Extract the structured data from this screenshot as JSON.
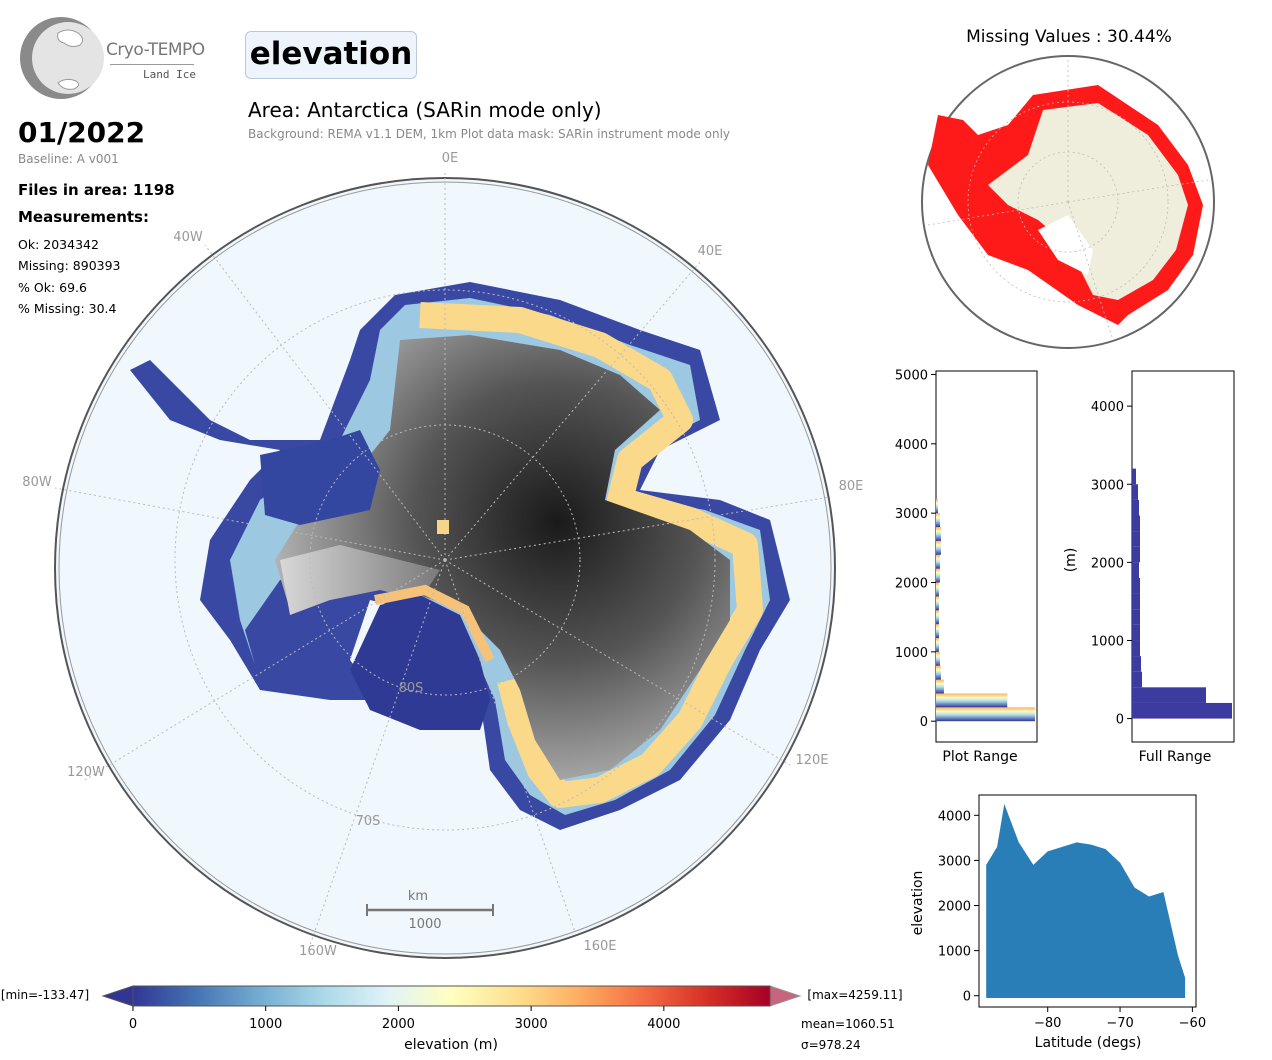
{
  "header": {
    "logo_title": "Cryo-TEMPO",
    "logo_subtitle": "Land Ice",
    "variable": "elevation",
    "area_title": "Area: Antarctica (SARin mode only)",
    "background_note": "Background: REMA v1.1 DEM, 1km   Plot data mask: SARin instrument mode only"
  },
  "stats": {
    "date": "01/2022",
    "baseline": "Baseline: A v001",
    "files": "Files in area: 1198",
    "measurements_label": "Measurements:",
    "ok": "Ok: 2034342",
    "missing": "Missing: 890393",
    "pct_ok": "% Ok: 69.6",
    "pct_missing": "% Missing: 30.4"
  },
  "map": {
    "lon_labels": [
      "0E",
      "40E",
      "80E",
      "120E",
      "160E",
      "40W",
      "80W",
      "120W",
      "160W"
    ],
    "lat_labels": [
      "80S",
      "70S"
    ],
    "scale_unit": "km",
    "scale_value": "1000"
  },
  "missing_map": {
    "title": "Missing Values : 30.44%"
  },
  "colorbar": {
    "label": "elevation (m)",
    "min_label": "[min=-133.47]",
    "max_label": "[max=4259.11]",
    "ticks": [
      "0",
      "1000",
      "2000",
      "3000",
      "4000"
    ],
    "mean": "mean=1060.51",
    "sigma": "σ=978.24",
    "colors": [
      "#313695",
      "#4575b4",
      "#74add1",
      "#abd9e9",
      "#e0f3f8",
      "#ffffbf",
      "#fee090",
      "#fdae61",
      "#f46d43",
      "#d73027",
      "#a50026"
    ]
  },
  "chart_data": [
    {
      "type": "bar",
      "orientation": "horizontal",
      "title": "",
      "xlabel": "Plot Range",
      "ylabel": "",
      "ylim": [
        -300,
        5050
      ],
      "yticks": [
        "0",
        "1000",
        "2000",
        "3000",
        "4000",
        "5000"
      ],
      "bins": [
        {
          "y": 0,
          "count": 1.0
        },
        {
          "y": 200,
          "count": 0.72
        },
        {
          "y": 400,
          "count": 0.08
        },
        {
          "y": 600,
          "count": 0.05
        },
        {
          "y": 800,
          "count": 0.04
        },
        {
          "y": 1000,
          "count": 0.03
        },
        {
          "y": 1200,
          "count": 0.03
        },
        {
          "y": 1400,
          "count": 0.03
        },
        {
          "y": 1600,
          "count": 0.03
        },
        {
          "y": 1800,
          "count": 0.03
        },
        {
          "y": 2000,
          "count": 0.04
        },
        {
          "y": 2200,
          "count": 0.04
        },
        {
          "y": 2400,
          "count": 0.05
        },
        {
          "y": 2600,
          "count": 0.05
        },
        {
          "y": 2800,
          "count": 0.04
        },
        {
          "y": 3000,
          "count": 0.02
        }
      ]
    },
    {
      "type": "bar",
      "orientation": "horizontal",
      "title": "",
      "xlabel": "Full Range",
      "ylabel": "(m)",
      "ylim": [
        -300,
        4450
      ],
      "yticks": [
        "0",
        "1000",
        "2000",
        "3000",
        "4000"
      ],
      "color": "#3b3ba0",
      "bins": [
        {
          "y": 0,
          "count": 1.0
        },
        {
          "y": 200,
          "count": 0.74
        },
        {
          "y": 400,
          "count": 0.1
        },
        {
          "y": 600,
          "count": 0.09
        },
        {
          "y": 800,
          "count": 0.08
        },
        {
          "y": 1000,
          "count": 0.08
        },
        {
          "y": 1200,
          "count": 0.08
        },
        {
          "y": 1400,
          "count": 0.08
        },
        {
          "y": 1600,
          "count": 0.08
        },
        {
          "y": 1800,
          "count": 0.07
        },
        {
          "y": 2000,
          "count": 0.08
        },
        {
          "y": 2200,
          "count": 0.08
        },
        {
          "y": 2400,
          "count": 0.08
        },
        {
          "y": 2600,
          "count": 0.07
        },
        {
          "y": 2800,
          "count": 0.06
        },
        {
          "y": 3000,
          "count": 0.04
        }
      ]
    },
    {
      "type": "scatter",
      "title": "",
      "xlabel": "Latitude (degs)",
      "ylabel": "elevation",
      "xlim": [
        -89.5,
        -59.5
      ],
      "ylim": [
        -250,
        4450
      ],
      "xticks": [
        "−80",
        "−70",
        "−60"
      ],
      "yticks": [
        "0",
        "1000",
        "2000",
        "3000",
        "4000"
      ],
      "color": "#1f77b4",
      "envelope": [
        {
          "x": -88.5,
          "y_max": 2900
        },
        {
          "x": -87,
          "y_max": 3300
        },
        {
          "x": -86,
          "y_max": 4250
        },
        {
          "x": -84,
          "y_max": 3400
        },
        {
          "x": -82,
          "y_max": 2900
        },
        {
          "x": -80,
          "y_max": 3200
        },
        {
          "x": -78,
          "y_max": 3300
        },
        {
          "x": -76,
          "y_max": 3400
        },
        {
          "x": -74,
          "y_max": 3350
        },
        {
          "x": -72,
          "y_max": 3250
        },
        {
          "x": -70,
          "y_max": 2950
        },
        {
          "x": -68,
          "y_max": 2400
        },
        {
          "x": -66,
          "y_max": 2200
        },
        {
          "x": -64,
          "y_max": 2300
        },
        {
          "x": -62,
          "y_max": 900
        },
        {
          "x": -61,
          "y_max": 400
        }
      ]
    }
  ]
}
